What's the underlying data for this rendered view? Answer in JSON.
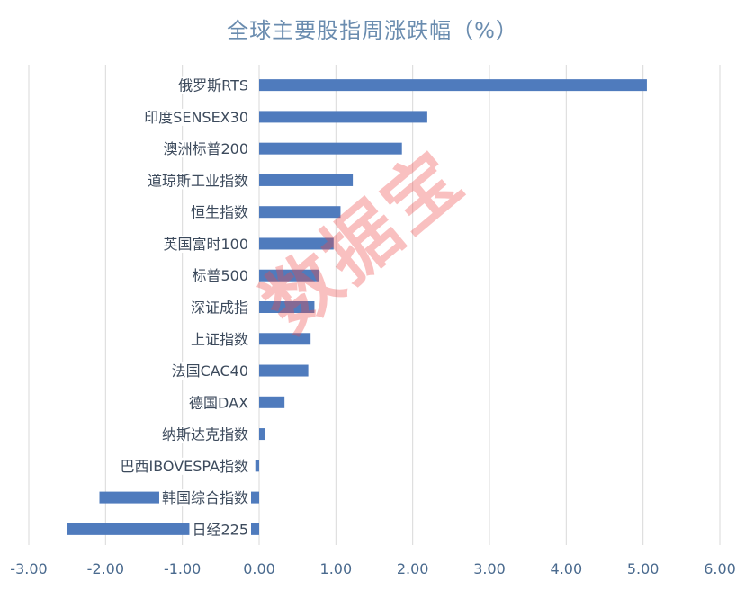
{
  "chart_data": {
    "type": "bar",
    "orientation": "horizontal",
    "title": "全球主要股指周涨跌幅（%）",
    "categories": [
      "俄罗斯RTS",
      "印度SENSEX30",
      "澳洲标普200",
      "道琼斯工业指数",
      "恒生指数",
      "英国富时100",
      "标普500",
      "深证成指",
      "上证指数",
      "法国CAC40",
      "德国DAX",
      "纳斯达克指数",
      "巴西IBOVESPA指数",
      "韩国综合指数",
      "日经225"
    ],
    "values": [
      5.05,
      2.19,
      1.86,
      1.22,
      1.06,
      0.97,
      0.78,
      0.72,
      0.67,
      0.64,
      0.33,
      0.08,
      -0.05,
      -2.08,
      -2.5
    ],
    "xlim": [
      -3,
      6
    ],
    "xticks": [
      "-3.00",
      "-2.00",
      "-1.00",
      "0.00",
      "1.00",
      "2.00",
      "3.00",
      "4.00",
      "5.00",
      "6.00"
    ],
    "grid": true,
    "xlabel": "",
    "ylabel": "",
    "bar_color": "#4f7bbd",
    "grid_color": "#d9d9d9"
  },
  "watermark": "数据宝"
}
